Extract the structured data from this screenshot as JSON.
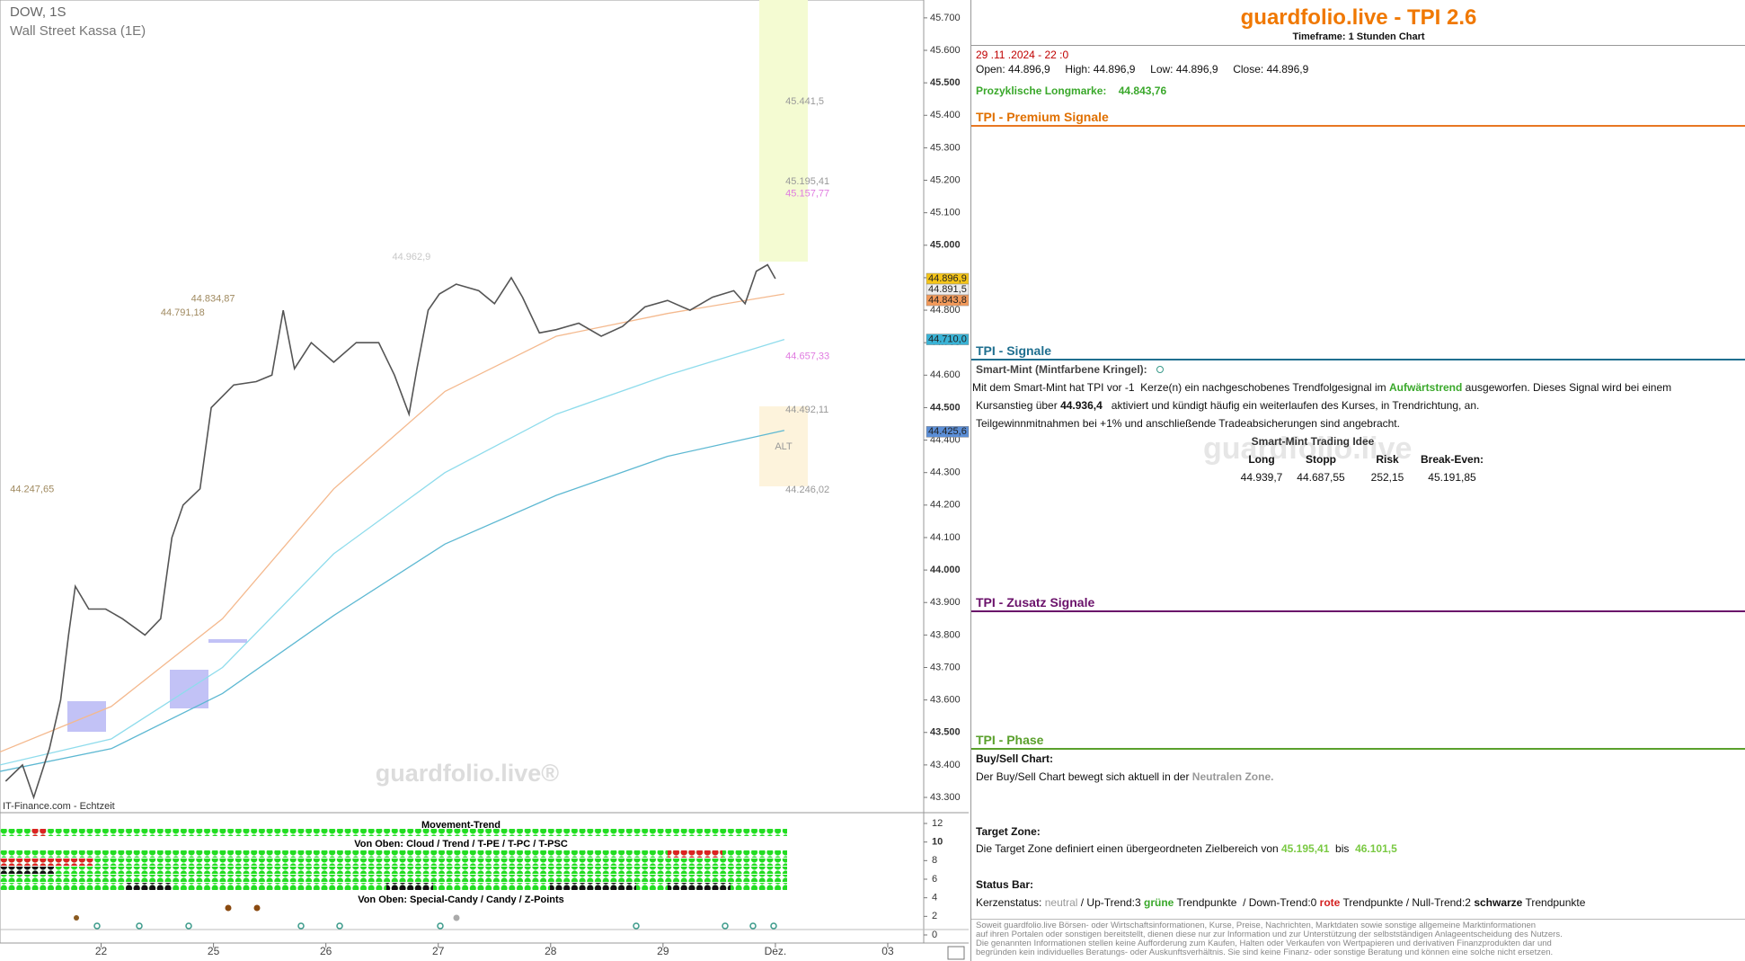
{
  "chart_data": [
    {
      "type": "line",
      "title": "DOW, 1S",
      "subtitle": "Wall Street Kassa (1E)",
      "watermark": "guardfolio.live®",
      "source": "IT-Finance.com - Echtzeit",
      "xlim": [
        0.1,
        8.32
      ],
      "xticks": [
        {
          "value": 1,
          "label": "22"
        },
        {
          "value": 2,
          "label": "25"
        },
        {
          "value": 3,
          "label": "26"
        },
        {
          "value": 4,
          "label": "27"
        },
        {
          "value": 5,
          "label": "28"
        },
        {
          "value": 6,
          "label": "29"
        },
        {
          "value": 7,
          "label": "Dez."
        },
        {
          "value": 8,
          "label": "03"
        }
      ],
      "ylim": [
        43253,
        45755
      ],
      "yticks": [
        {
          "value": 43300,
          "label": "43.300"
        },
        {
          "value": 43400,
          "label": "43.400"
        },
        {
          "value": 43500,
          "label": "43.500"
        },
        {
          "value": 43600,
          "label": "43.600"
        },
        {
          "value": 43700,
          "label": "43.700"
        },
        {
          "value": 43800,
          "label": "43.800"
        },
        {
          "value": 43900,
          "label": "43.900"
        },
        {
          "value": 44000,
          "label": "44.000"
        },
        {
          "value": 44100,
          "label": "44.100"
        },
        {
          "value": 44200,
          "label": "44.200"
        },
        {
          "value": 44300,
          "label": "44.300"
        },
        {
          "value": 44400,
          "label": "44.400"
        },
        {
          "value": 44500,
          "label": "44.500"
        },
        {
          "value": 44600,
          "label": "44.600"
        },
        {
          "value": 44700,
          "label": "44.700"
        },
        {
          "value": 44800,
          "label": "44.800"
        },
        {
          "value": 44900,
          "label": "44.900"
        },
        {
          "value": 45000,
          "label": "45.000"
        },
        {
          "value": 45100,
          "label": "45.100"
        },
        {
          "value": 45200,
          "label": "45.200"
        },
        {
          "value": 45300,
          "label": "45.300"
        },
        {
          "value": 45400,
          "label": "45.400"
        },
        {
          "value": 45500,
          "label": "45.500"
        },
        {
          "value": 45600,
          "label": "45.600"
        },
        {
          "value": 45700,
          "label": "45.700"
        }
      ],
      "series": [
        {
          "color": "#f4b98e",
          "x": [
            0.1,
            1.09,
            2.08,
            3.07,
            4.06,
            5.05,
            6.04,
            7.08
          ],
          "values": [
            43440,
            43580,
            43850,
            44250,
            44550,
            44720,
            44790,
            44850
          ]
        },
        {
          "color": "#8fdcec",
          "x": [
            0.1,
            1.09,
            2.08,
            3.07,
            4.06,
            5.05,
            6.04,
            7.08
          ],
          "values": [
            43400,
            43480,
            43700,
            44050,
            44300,
            44480,
            44600,
            44710
          ]
        },
        {
          "color": "#5db8d2",
          "x": [
            0.1,
            1.09,
            2.08,
            3.07,
            4.06,
            5.05,
            6.04,
            7.08
          ],
          "values": [
            43380,
            43450,
            43620,
            43860,
            44080,
            44230,
            44350,
            44430
          ]
        },
        {
          "color": "#555555",
          "x": [
            0.15,
            0.3,
            0.4,
            0.54,
            0.64,
            0.71,
            0.77,
            0.89,
            1.04,
            1.19,
            1.39,
            1.53,
            1.63,
            1.73,
            1.88,
            1.98,
            2.18,
            2.38,
            2.52,
            2.62,
            2.72,
            2.87,
            3.07,
            3.27,
            3.47,
            3.61,
            3.74,
            3.81,
            3.91,
            4.01,
            4.16,
            4.36,
            4.5,
            4.65,
            4.75,
            4.9,
            5.05,
            5.25,
            5.45,
            5.64,
            5.84,
            6.04,
            6.24,
            6.44,
            6.63,
            6.73,
            6.83,
            6.93,
            7.0
          ],
          "values": [
            43350,
            43400,
            43300,
            43450,
            43600,
            43800,
            43950,
            43880,
            43880,
            43850,
            43800,
            43850,
            44100,
            44200,
            44250,
            44500,
            44570,
            44580,
            44600,
            44800,
            44620,
            44700,
            44640,
            44700,
            44700,
            44600,
            44480,
            44620,
            44800,
            44850,
            44880,
            44860,
            44820,
            44900,
            44840,
            44730,
            44740,
            44760,
            44720,
            44750,
            44810,
            44830,
            44800,
            44840,
            44860,
            44820,
            44920,
            44940,
            44896.9
          ]
        }
      ],
      "annotations": [
        {
          "text": "45.441,5",
          "value": 45441.5,
          "x": 7.09,
          "color": "#999999"
        },
        {
          "text": "45.195,41",
          "value": 45195.41,
          "x": 7.09,
          "color": "#999999"
        },
        {
          "text": "45.157,77",
          "value": 45157.77,
          "x": 7.09,
          "color": "#e07be0"
        },
        {
          "text": "44.657,33",
          "value": 44657.33,
          "x": 7.09,
          "color": "#e07be0"
        },
        {
          "text": "44.492,11",
          "value": 44492.11,
          "x": 7.09,
          "color": "#999999"
        },
        {
          "text": "44.246,02",
          "value": 44246.02,
          "x": 7.09,
          "color": "#999999"
        },
        {
          "text": "44.962,9",
          "value": 44962.9,
          "x": 3.59,
          "color": "#c8c8c8"
        },
        {
          "text": "44.834,87",
          "value": 44834.87,
          "x": 1.8,
          "color": "#a08a60"
        },
        {
          "text": "44.791,18",
          "value": 44791.18,
          "x": 1.53,
          "color": "#a08a60"
        },
        {
          "text": "44.247,65",
          "value": 44247.65,
          "x": 0.19,
          "color": "#a08a60"
        }
      ],
      "zone_label": "ALT",
      "price_markers": [
        {
          "label": "44.896,9",
          "value": 44896.9,
          "color": "#f5c518"
        },
        {
          "label": "44.891,5",
          "value": 44891.5,
          "color": "#eeeeee"
        },
        {
          "label": "44.843,8",
          "value": 44843.8,
          "color": "#f39a5a"
        },
        {
          "label": "44.710,0",
          "value": 44710.0,
          "color": "#39b3d6"
        },
        {
          "label": "44.425,6",
          "value": 44425.6,
          "color": "#5b8ed6"
        }
      ]
    },
    {
      "type": "dots",
      "title": "Movement-Trend",
      "row_titles": [
        "Von Oben: Cloud / Trend / T-PE / T-PC / T-PSC",
        "Von Oben: Special-Candy / Candy / Z-Points"
      ],
      "ylim": [
        0,
        12
      ],
      "yticks": [
        0,
        2,
        4,
        6,
        8,
        10,
        12
      ]
    }
  ],
  "panel": {
    "title": "guardfolio.live - TPI 2.6",
    "timeframe": "Timeframe: 1 Stunden Chart",
    "date": "29 .11 .2024 - 22 :0",
    "ohlc": [
      "Open: 44.896,9",
      "High: 44.896,9",
      "Low: 44.896,9",
      "Close: 44.896,9"
    ],
    "longmarke": [
      "Prozyklische Longmarke:",
      "44.843,76"
    ],
    "premium": "TPI - Premium Signale",
    "signale": "TPI - Signale",
    "smartmint": "Smart-Mint (Mintfarbene Kringel):",
    "line1": [
      "Mit dem Smart-Mint hat TPI vor -1  Kerze(n) ein nachgeschobenes Trendfolgesignal im ",
      "Aufwärtstrend",
      " ausgeworfen. Dieses Signal wird bei einem"
    ],
    "line2": [
      "Kursanstieg über ",
      "44.936,4",
      "   aktiviert und kündigt häufig ein weiterlaufen des Kurses, in Trendrichtung, an."
    ],
    "line3": "Teilgewinnmitnahmen bei +1% und anschließende Tradeabsicherungen sind angebracht.",
    "idea": "Smart-Mint Trading Idee",
    "idea_table": {
      "header": [
        "Long",
        "Stopp",
        "Risk",
        "Break-Even:"
      ],
      "row": [
        "44.939,7",
        "44.687,55",
        "252,15",
        "45.191,85"
      ]
    },
    "watermark": "guardfolio.live",
    "zusatz": "TPI - Zusatz Signale",
    "phase": "TPI - Phase",
    "buysell": [
      "Buy/Sell Chart:",
      "Der Buy/Sell Chart bewegt sich aktuell in der ",
      "Neutralen Zone."
    ],
    "target": [
      "Target Zone:",
      "Die Target Zone definiert einen übergeordneten Zielbereich von ",
      "45.195,41",
      "  bis  ",
      "46.101,5"
    ],
    "status": [
      "Status Bar:",
      "Kerzenstatus: ",
      "neutral",
      " / Up-Trend:3 ",
      "grüne",
      " Trendpunkte  / Down-Trend:0 ",
      "rote",
      " Trendpunkte / Null-Trend:2 ",
      "schwarze",
      " Trendpunkte"
    ],
    "disclaimer": [
      "Soweit guardfolio.live Börsen- oder Wirtschaftsinformationen, Kurse, Preise, Nachrichten, Marktdaten sowie sonstige allgemeine Marktinformationen",
      "auf ihren Portalen oder sonstigen bereitstellt, dienen diese nur zur Information und zur Unterstützung der selbstständigen Anlageentscheidung des Nutzers.",
      "Die genannten Informationen stellen keine Aufforderung zum Kaufen, Halten oder Verkaufen von Wertpapieren und derivativen Finanzprodukten dar und",
      "begründen kein individuelles Beratungs- oder Auskunftsverhältnis. Sie sind keine Finanz- oder sonstige Beratung und können eine solche nicht ersetzen."
    ]
  }
}
